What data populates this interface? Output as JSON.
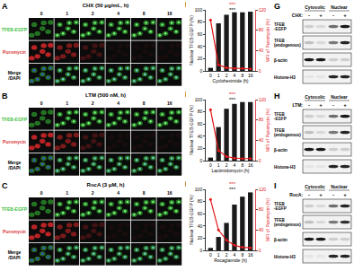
{
  "image_panels": [
    {
      "letter": "A",
      "title": "CHX (50 μg/mL, h)",
      "times": [
        "0",
        "1",
        "2",
        "4",
        "8",
        "16"
      ],
      "rows": [
        [
          "TFEB-EGFP"
        ],
        [
          "Puromycin"
        ],
        [
          "Merge",
          "/DAPI"
        ]
      ]
    },
    {
      "letter": "B",
      "title": "LTM (500 nM, h)",
      "times": [
        "0",
        "1",
        "2",
        "4",
        "8",
        "16"
      ],
      "rows": [
        [
          "TFEB-EGFP"
        ],
        [
          "Puromycin"
        ],
        [
          "Merge",
          "/DAPI"
        ]
      ]
    },
    {
      "letter": "C",
      "title": "RocA (3 μM, h)",
      "times": [
        "0",
        "1",
        "2",
        "4",
        "8",
        "16"
      ],
      "rows": [
        [
          "TFEB-EGFP"
        ],
        [
          "Puromycin"
        ],
        [
          "Merge",
          "/DAPI"
        ]
      ]
    }
  ],
  "chart_data": [
    {
      "letter": "D",
      "type": "bar",
      "categories": [
        "0",
        "1",
        "2",
        "4",
        "8",
        "16"
      ],
      "x_label": "Cycloheximide (h)",
      "y_label": "Nuclear TFEB-EGFP (%)",
      "y2_label": "MFI of Puromycin (%)",
      "series": [
        {
          "type": "bar",
          "color": "#1a1a1a",
          "values": [
            5,
            78,
            92,
            96,
            96,
            97
          ]
        },
        {
          "type": "line",
          "axis": "y2",
          "color": "#e3171b",
          "marker": "circle",
          "values": [
            100,
            12,
            6,
            5,
            5,
            4
          ]
        }
      ],
      "ylim": [
        0,
        100
      ],
      "yticks": [
        0,
        20,
        40,
        60,
        80,
        100
      ],
      "y2lim": [
        0,
        120
      ],
      "y2ticks": [
        0,
        40,
        80,
        120
      ],
      "annotations": [
        {
          "text": "***",
          "color": "#e3171b"
        },
        {
          "text": "***",
          "color": "#000000"
        }
      ]
    },
    {
      "letter": "E",
      "type": "bar",
      "categories": [
        "0",
        "1",
        "2",
        "4",
        "8",
        "16"
      ],
      "x_label": "Lactimidomycin (h)",
      "y_label": "Nuclear TFEB-EGFP (%)",
      "y2_label": "MFI of Puromycin (%)",
      "series": [
        {
          "type": "bar",
          "color": "#1a1a1a",
          "values": [
            5,
            55,
            85,
            93,
            96,
            96
          ]
        },
        {
          "type": "line",
          "axis": "y2",
          "color": "#e3171b",
          "marker": "circle",
          "values": [
            100,
            20,
            8,
            5,
            4,
            4
          ]
        }
      ],
      "ylim": [
        0,
        100
      ],
      "yticks": [
        0,
        20,
        40,
        60,
        80,
        100
      ],
      "y2lim": [
        0,
        120
      ],
      "y2ticks": [
        0,
        40,
        80,
        120
      ],
      "annotations": [
        {
          "text": "***",
          "color": "#e3171b"
        },
        {
          "text": "***",
          "color": "#000000"
        }
      ]
    },
    {
      "letter": "F",
      "type": "bar",
      "categories": [
        "0",
        "1",
        "2",
        "4",
        "8",
        "16"
      ],
      "x_label": "Rocaglamide (h)",
      "y_label": "Nuclear TFEB-EGFP (%)",
      "y2_label": "MFI of Puromycin (%)",
      "series": [
        {
          "type": "bar",
          "color": "#1a1a1a",
          "values": [
            4,
            22,
            45,
            75,
            88,
            95
          ]
        },
        {
          "type": "line",
          "axis": "y2",
          "color": "#e3171b",
          "marker": "circle",
          "values": [
            100,
            40,
            20,
            10,
            6,
            5
          ]
        }
      ],
      "ylim": [
        0,
        100
      ],
      "yticks": [
        0,
        20,
        40,
        60,
        80,
        100
      ],
      "y2lim": [
        0,
        120
      ],
      "y2ticks": [
        0,
        40,
        80,
        120
      ],
      "annotations": [
        {
          "text": "***",
          "color": "#e3171b"
        },
        {
          "text": "***",
          "color": "#000000"
        }
      ]
    }
  ],
  "blots": [
    {
      "letter": "G",
      "columns": [
        "Cytosolic",
        "Nuclear"
      ],
      "treatment": "CHX:",
      "signs": [
        "-",
        "+",
        "-",
        "+"
      ],
      "rows": [
        {
          "label": [
            "TFEB",
            "-EGFP"
          ],
          "bands": [
            0.15,
            0.1,
            0.55,
            0.9
          ]
        },
        {
          "label": [
            "TFEB",
            "(endogenous)"
          ],
          "bands": [
            0.2,
            0.1,
            0.5,
            0.85
          ]
        },
        {
          "label": [
            "β-actin"
          ],
          "bands": [
            0.9,
            0.9,
            0.15,
            0.15
          ]
        },
        {
          "label": [
            "Histone-H3"
          ],
          "bands": [
            0.05,
            0.05,
            0.85,
            0.85
          ]
        }
      ]
    },
    {
      "letter": "H",
      "columns": [
        "Cytosolic",
        "Nuclear"
      ],
      "treatment": "LTM:",
      "signs": [
        "-",
        "+",
        "-",
        "+"
      ],
      "rows": [
        {
          "label": [
            "TFEB",
            "-EGFP"
          ],
          "bands": [
            0.15,
            0.1,
            0.55,
            0.9
          ]
        },
        {
          "label": [
            "TFEB",
            "(endogenous)"
          ],
          "bands": [
            0.2,
            0.1,
            0.5,
            0.85
          ]
        },
        {
          "label": [
            "β-actin"
          ],
          "bands": [
            0.9,
            0.9,
            0.15,
            0.15
          ]
        },
        {
          "label": [
            "Histone-H3"
          ],
          "bands": [
            0.05,
            0.05,
            0.85,
            0.85
          ]
        }
      ]
    },
    {
      "letter": "I",
      "columns": [
        "Cytosolic",
        "Nuclear"
      ],
      "treatment": "RocA:",
      "signs": [
        "-",
        "+",
        "-",
        "+"
      ],
      "rows": [
        {
          "label": [
            "TFEB",
            "-EGFP"
          ],
          "bands": [
            0.15,
            0.1,
            0.55,
            0.85
          ]
        },
        {
          "label": [
            "TFEB",
            "(endogenous)"
          ],
          "bands": [
            0.2,
            0.1,
            0.5,
            0.8
          ]
        },
        {
          "label": [
            "β-actin"
          ],
          "bands": [
            0.9,
            0.9,
            0.15,
            0.15
          ]
        },
        {
          "label": [
            "Histone-H3"
          ],
          "bands": [
            0.05,
            0.05,
            0.85,
            0.85
          ]
        }
      ]
    }
  ]
}
